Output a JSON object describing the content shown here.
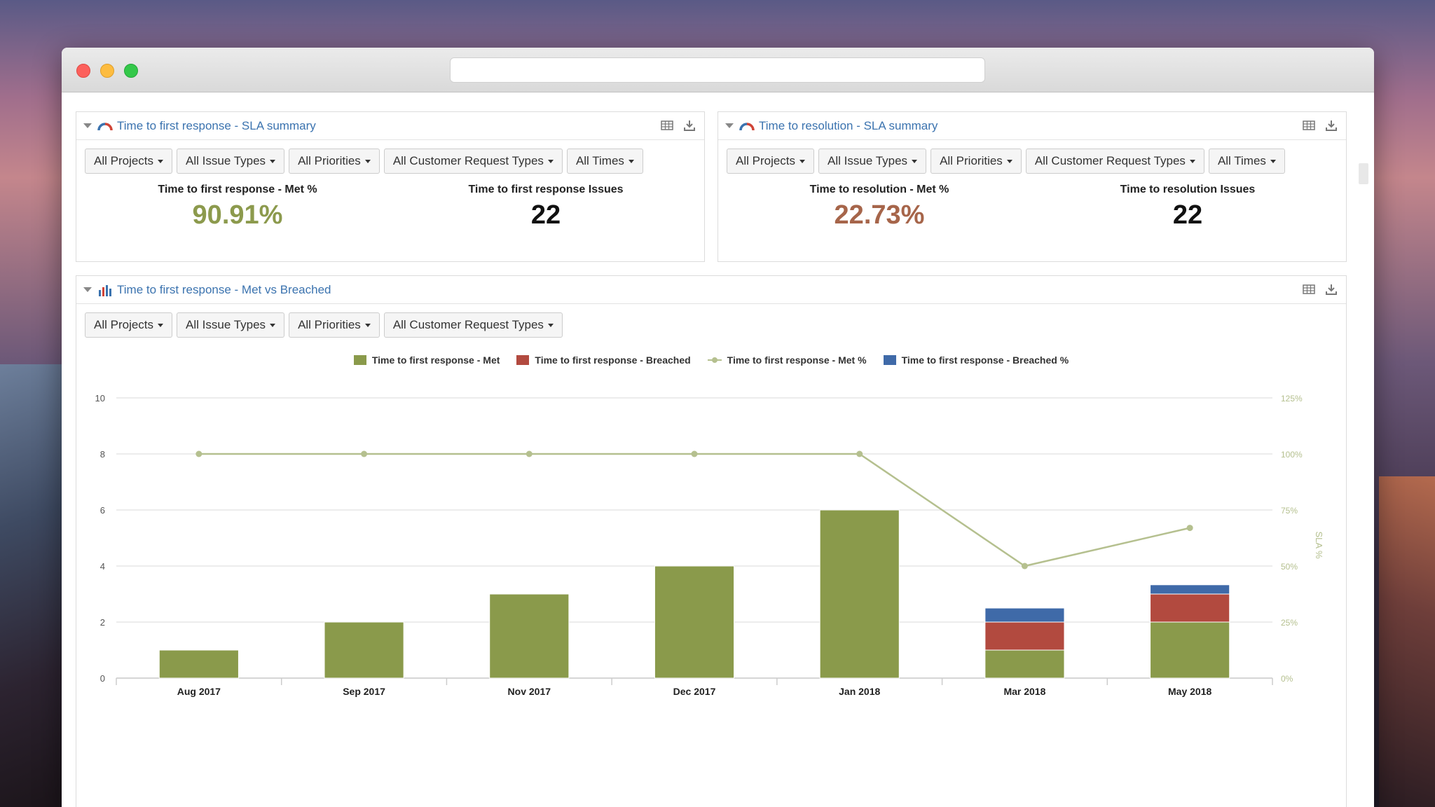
{
  "panels": {
    "first_response_summary": {
      "title": "Time to first response - SLA summary",
      "filters": [
        "All Projects",
        "All Issue Types",
        "All Priorities",
        "All Customer Request Types",
        "All Times"
      ],
      "met_label": "Time to first response - Met %",
      "met_value": "90.91%",
      "met_color": "#8c9a4d",
      "issues_label": "Time to first response Issues",
      "issues_value": "22"
    },
    "resolution_summary": {
      "title": "Time to resolution - SLA summary",
      "filters": [
        "All Projects",
        "All Issue Types",
        "All Priorities",
        "All Customer Request Types",
        "All Times"
      ],
      "met_label": "Time to resolution - Met %",
      "met_value": "22.73%",
      "met_color": "#a6654a",
      "issues_label": "Time to resolution Issues",
      "issues_value": "22"
    },
    "met_vs_breached": {
      "title": "Time to first response - Met vs Breached",
      "filters": [
        "All Projects",
        "All Issue Types",
        "All Priorities",
        "All Customer Request Types"
      ]
    }
  },
  "colors": {
    "met": "#8a9a4b",
    "breached": "#b24a3f",
    "met_pct_line": "#b5c08f",
    "breached_pct": "#3f6aa8",
    "title_link": "#3b73af"
  },
  "chart_data": {
    "type": "bar",
    "categories": [
      "Aug 2017",
      "Sep 2017",
      "Nov 2017",
      "Dec 2017",
      "Jan 2018",
      "Mar 2018",
      "May 2018"
    ],
    "series": [
      {
        "name": "Time to first response - Met",
        "type": "bar",
        "axis": "left",
        "values": [
          1,
          2,
          3,
          4,
          6,
          1,
          2
        ]
      },
      {
        "name": "Time to first response - Breached",
        "type": "bar",
        "axis": "left",
        "values": [
          0,
          0,
          0,
          0,
          0,
          1,
          1
        ]
      },
      {
        "name": "Time to first response - Met %",
        "type": "line",
        "axis": "right",
        "values": [
          100,
          100,
          100,
          100,
          100,
          50,
          67
        ]
      },
      {
        "name": "Time to first response - Breached %",
        "type": "bar",
        "axis": "left",
        "values": [
          0,
          0,
          0,
          0,
          0,
          0.5,
          0.33
        ]
      }
    ],
    "y_left_ticks": [
      "0",
      "2",
      "4",
      "6",
      "8",
      "10"
    ],
    "ylim_left": [
      0,
      10
    ],
    "y_right_ticks": [
      "0%",
      "25%",
      "50%",
      "75%",
      "100%",
      "125%"
    ],
    "ylim_right": [
      0,
      125
    ],
    "y_right_label": "SLA %",
    "grid": true,
    "legend_position": "top"
  }
}
